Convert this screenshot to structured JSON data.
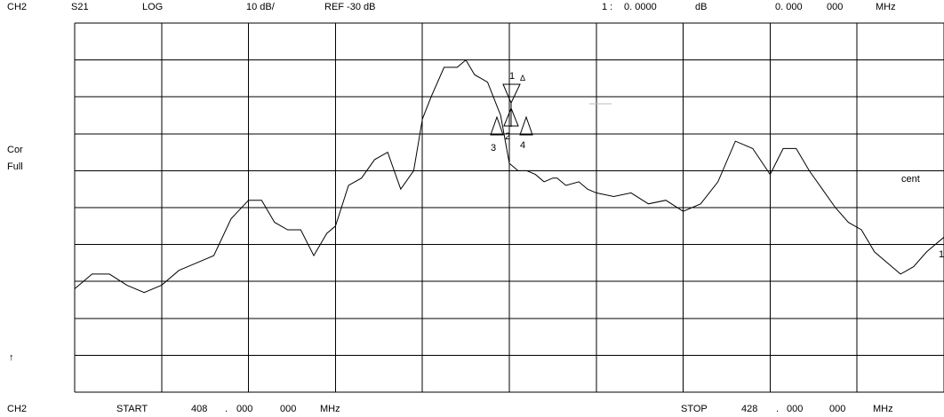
{
  "header": {
    "channel": "CH2",
    "param": "S21",
    "format": "LOG",
    "scale": "10 dB/",
    "ref": "REF -30 dB",
    "marker_no": "1 :",
    "marker_value": "0. 0000",
    "marker_unit": "dB",
    "marker_freq_a": "0. 000",
    "marker_freq_b": "000",
    "marker_freq_unit": "MHz"
  },
  "side": {
    "cor": "Cor",
    "full": "Full",
    "arrow": "↑",
    "cent": "cent"
  },
  "footer": {
    "channel": "CH2",
    "start_label": "START",
    "start_a": "408",
    "start_dot": ".",
    "start_b": "000",
    "start_c": "000",
    "start_unit": "MHz",
    "stop_label": "STOP",
    "stop_a": "428",
    "stop_dot": ".",
    "stop_b": "000",
    "stop_c": "000",
    "stop_unit": "MHz"
  },
  "markers": {
    "m1": "1",
    "delta": "Δ",
    "m2": "2",
    "m3": "3",
    "m4": "4",
    "end": "1"
  },
  "chart_data": {
    "type": "line",
    "x_unit": "MHz",
    "y_unit": "dB",
    "xlim": [
      408,
      428
    ],
    "ylim": [
      -130,
      -30
    ],
    "grid": true,
    "series": [
      {
        "x": [
          408.0,
          408.4,
          408.8,
          409.2,
          409.6,
          410.0,
          410.4,
          410.8,
          411.2,
          411.6,
          412.0,
          412.3,
          412.6,
          412.9,
          413.2,
          413.5,
          413.8,
          414.0,
          414.3,
          414.6,
          414.9,
          415.2,
          415.5,
          415.8,
          416.0,
          416.2,
          416.5,
          416.8,
          417.0,
          417.2,
          417.5,
          417.8,
          418.0,
          418.2,
          418.4,
          418.6,
          418.8,
          419.0,
          419.1,
          419.3,
          419.6,
          419.8,
          420.0,
          420.4,
          420.8,
          421.2,
          421.6,
          422.0,
          422.4,
          422.8,
          423.2,
          423.6,
          424.0,
          424.3,
          424.6,
          424.9,
          425.2,
          425.5,
          425.8,
          426.1,
          426.4,
          426.7,
          427.0,
          427.3,
          427.6,
          428.0
        ],
        "y": [
          -102,
          -98,
          -98,
          -101,
          -103,
          -101,
          -97,
          -95,
          -93,
          -83,
          -78,
          -78,
          -84,
          -86,
          -86,
          -93,
          -87,
          -85,
          -74,
          -72,
          -67,
          -65,
          -75,
          -70,
          -56,
          -50,
          -42,
          -42,
          -40,
          -44,
          -46,
          -55,
          -68,
          -70,
          -70,
          -71,
          -73,
          -72,
          -72,
          -74,
          -73,
          -75,
          -76,
          -77,
          -76,
          -79,
          -78,
          -81,
          -79,
          -73,
          -62,
          -64,
          -71,
          -64,
          -64,
          -70,
          -75,
          -80,
          -84,
          -86,
          -92,
          -95,
          -98,
          -96,
          -92,
          -88
        ]
      }
    ]
  }
}
